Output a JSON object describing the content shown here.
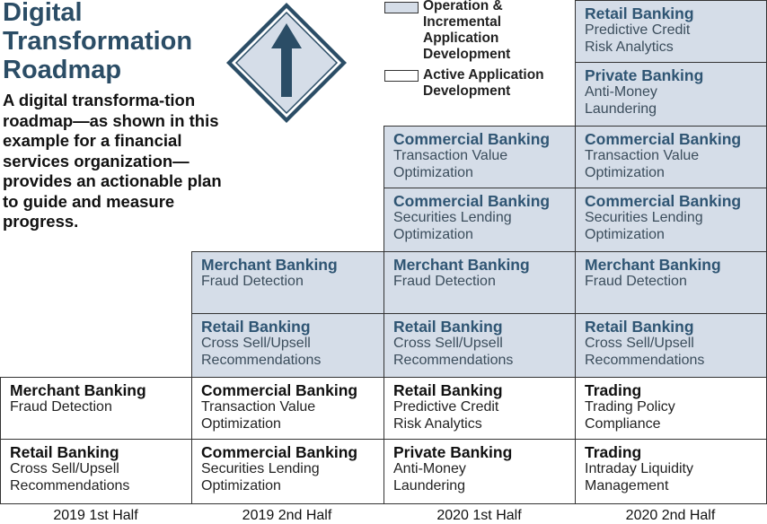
{
  "title": "Digital Transformation Roadmap",
  "description": "A digital transforma-tion roadmap—as shown in this example for a financial services organization—provides an actionable plan to guide and measure progress.",
  "colors": {
    "operation": "#d5dde8",
    "development": "#ffffff",
    "heading_operation": "#2f5573",
    "sign": "#2b4d66"
  },
  "legend": [
    {
      "swatch": "operation",
      "label": "Operation & Incremental Application Development"
    },
    {
      "swatch": "development",
      "label": "Active Application Development"
    }
  ],
  "columns": [
    "2019 1st Half",
    "2019 2nd Half",
    "2020 1st Half",
    "2020 2nd Half"
  ],
  "cells": [
    {
      "type": "operation",
      "heading": "Retail Banking",
      "sub": "Predictive Credit\nRisk Analytics"
    },
    {
      "type": "operation",
      "heading": "Private Banking",
      "sub": "Anti-Money\nLaundering"
    },
    {
      "type": "operation",
      "heading": "Commercial Banking",
      "sub": "Transaction Value\nOptimization"
    },
    {
      "type": "operation",
      "heading": "Commercial Banking",
      "sub": "Transaction Value\nOptimization"
    },
    {
      "type": "operation",
      "heading": "Commercial Banking",
      "sub": "Securities Lending\nOptimization"
    },
    {
      "type": "operation",
      "heading": "Commercial Banking",
      "sub": "Securities Lending\nOptimization"
    },
    {
      "type": "operation",
      "heading": "Merchant Banking",
      "sub": "Fraud Detection"
    },
    {
      "type": "operation",
      "heading": "Merchant Banking",
      "sub": "Fraud Detection"
    },
    {
      "type": "operation",
      "heading": "Merchant Banking",
      "sub": "Fraud Detection"
    },
    {
      "type": "operation",
      "heading": "Retail Banking",
      "sub": "Cross Sell/Upsell\nRecommendations"
    },
    {
      "type": "operation",
      "heading": "Retail Banking",
      "sub": "Cross Sell/Upsell\nRecommendations"
    },
    {
      "type": "operation",
      "heading": "Retail Banking",
      "sub": "Cross Sell/Upsell\nRecommendations"
    },
    {
      "type": "development",
      "heading": "Merchant Banking",
      "sub": "Fraud Detection"
    },
    {
      "type": "development",
      "heading": "Commercial Banking",
      "sub": "Transaction Value\nOptimization"
    },
    {
      "type": "development",
      "heading": "Retail Banking",
      "sub": "Predictive Credit\nRisk Analytics"
    },
    {
      "type": "development",
      "heading": "Trading",
      "sub": "Trading Policy\nCompliance"
    },
    {
      "type": "development",
      "heading": "Retail Banking",
      "sub": "Cross Sell/Upsell\nRecommendations"
    },
    {
      "type": "development",
      "heading": "Commercial Banking",
      "sub": "Securities Lending\nOptimization"
    },
    {
      "type": "development",
      "heading": "Private Banking",
      "sub": "Anti-Money\nLaundering"
    },
    {
      "type": "development",
      "heading": "Trading",
      "sub": "Intraday Liquidity\nManagement"
    }
  ]
}
